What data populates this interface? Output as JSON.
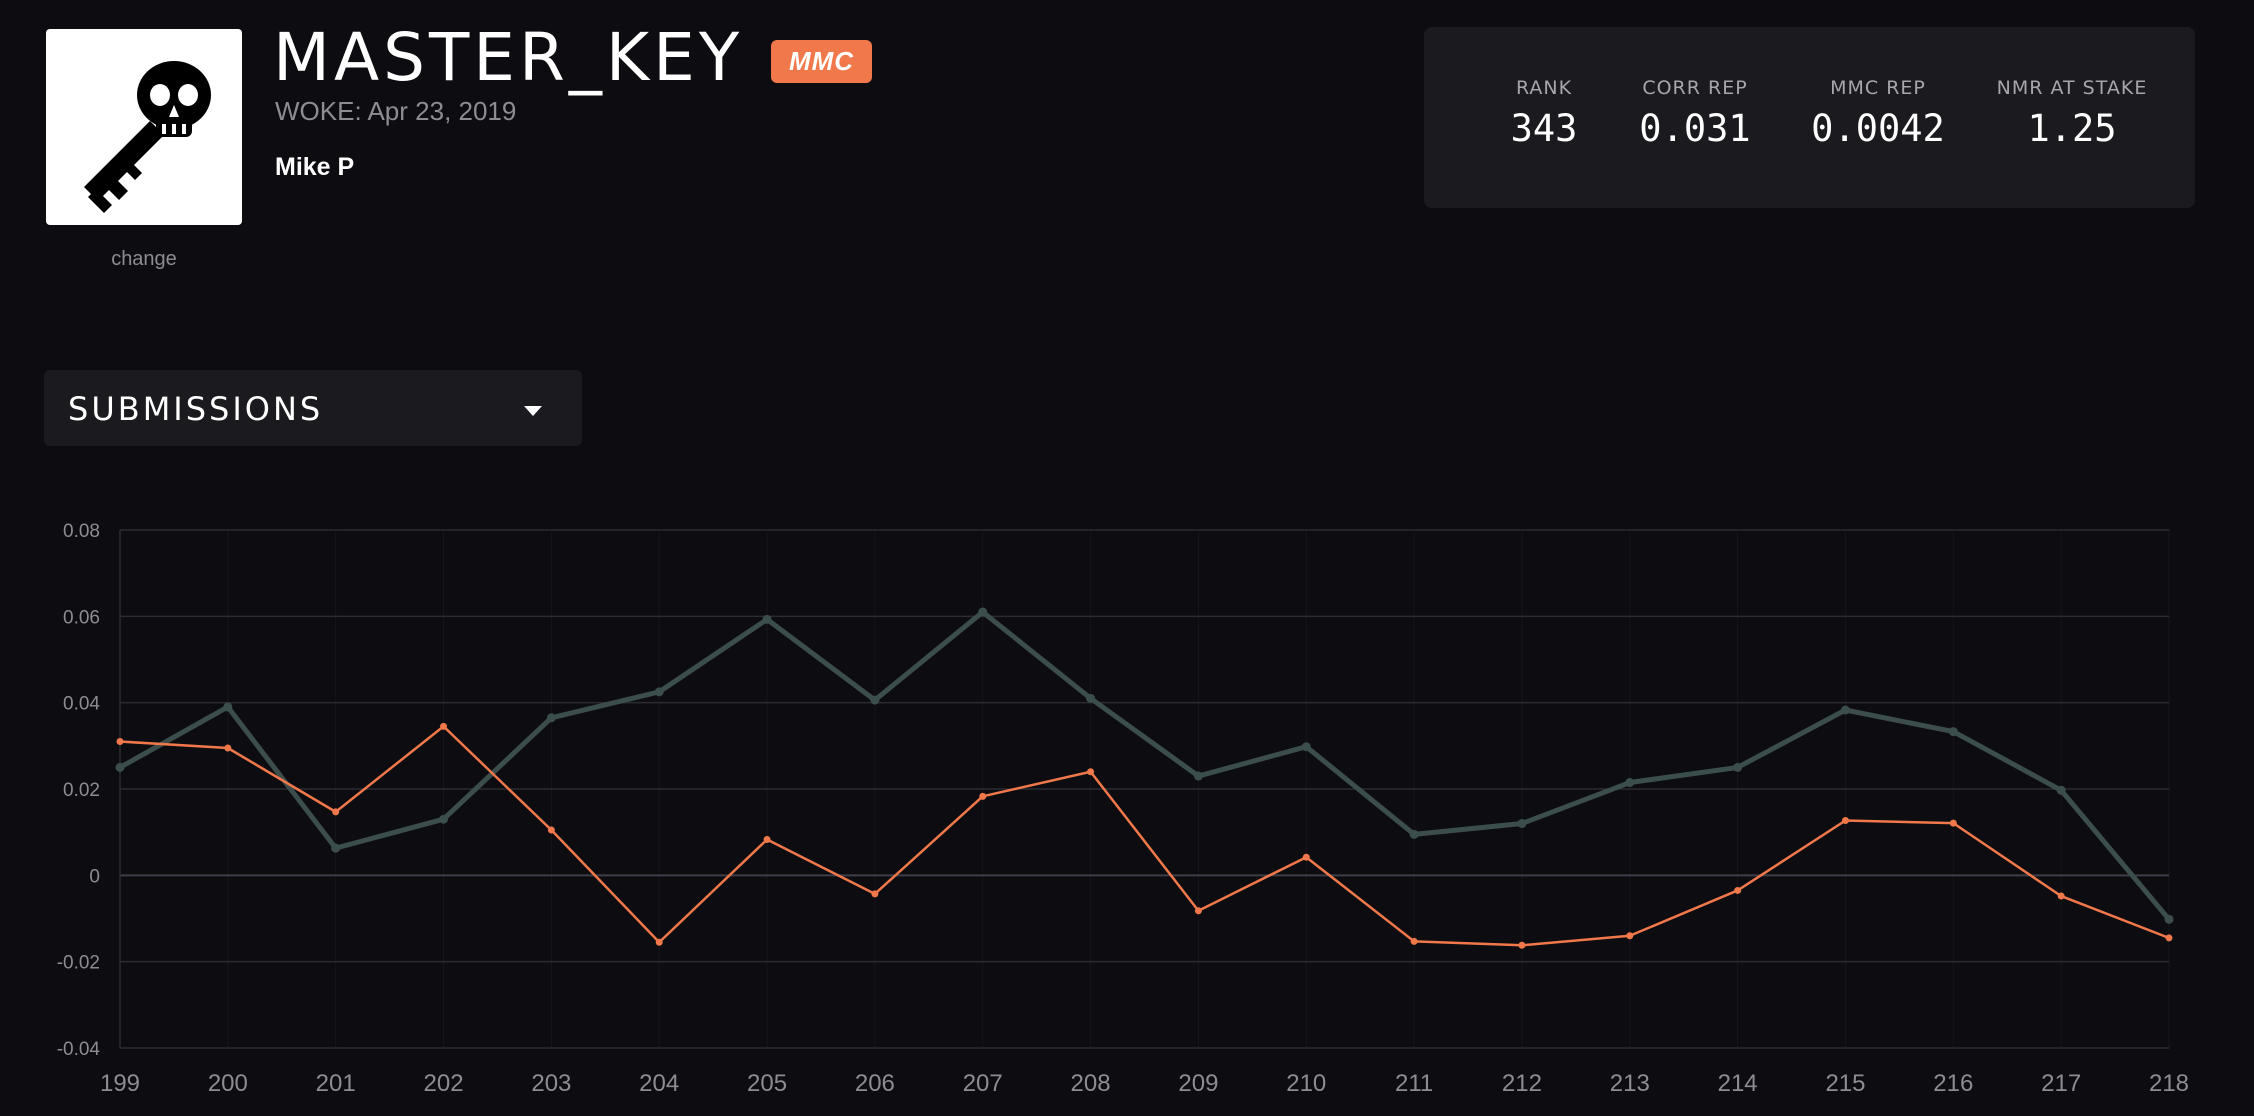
{
  "profile": {
    "model_name": "MASTER_KEY",
    "badge": "MMC",
    "woke": "WOKE: Apr 23, 2019",
    "owner": "Mike P",
    "avatar_change": "change"
  },
  "stats": [
    {
      "label": "RANK",
      "value": "343"
    },
    {
      "label": "CORR REP",
      "value": "0.031"
    },
    {
      "label": "MMC REP",
      "value": "0.0042"
    },
    {
      "label": "NMR AT STAKE",
      "value": "1.25"
    }
  ],
  "dropdown": {
    "label": "SUBMISSIONS"
  },
  "colors": {
    "background": "#0d0c10",
    "panel": "#1b1a1f",
    "accent_orange": "#f0784a",
    "series_corr": "#3c4e4b",
    "series_mmc": "#f0784a"
  },
  "chart_data": {
    "type": "line",
    "x": [
      199,
      200,
      201,
      202,
      203,
      204,
      205,
      206,
      207,
      208,
      209,
      210,
      211,
      212,
      213,
      214,
      215,
      216,
      217,
      218
    ],
    "x_tick_labels": [
      "199",
      "200",
      "201",
      "202",
      "203",
      "204",
      "205",
      "206",
      "207",
      "208",
      "209",
      "210",
      "211",
      "212",
      "213",
      "214",
      "215",
      "216",
      "217",
      "218"
    ],
    "y_tick_labels": [
      "0.08",
      "0.06",
      "0.04",
      "0.02",
      "0",
      "-0.02",
      "-0.04"
    ],
    "y_ticks": [
      0.08,
      0.06,
      0.04,
      0.02,
      0,
      -0.02,
      -0.04
    ],
    "ylim": [
      -0.04,
      0.08
    ],
    "grid": true,
    "series": [
      {
        "color": "#3c4e4b",
        "values": [
          0.025,
          0.039,
          0.0063,
          0.013,
          0.0365,
          0.0425,
          0.0593,
          0.0406,
          0.061,
          0.041,
          0.023,
          0.0298,
          0.0095,
          0.012,
          0.0215,
          0.025,
          0.0383,
          0.0333,
          0.0197,
          -0.0102
        ]
      },
      {
        "color": "#f0784a",
        "values": [
          0.031,
          0.0295,
          0.0147,
          0.0345,
          0.0105,
          -0.0155,
          0.0083,
          -0.0043,
          0.0183,
          0.024,
          -0.0082,
          0.0042,
          -0.0153,
          -0.0162,
          -0.014,
          -0.0035,
          0.0127,
          0.0121,
          -0.0048,
          -0.0145
        ]
      }
    ]
  }
}
